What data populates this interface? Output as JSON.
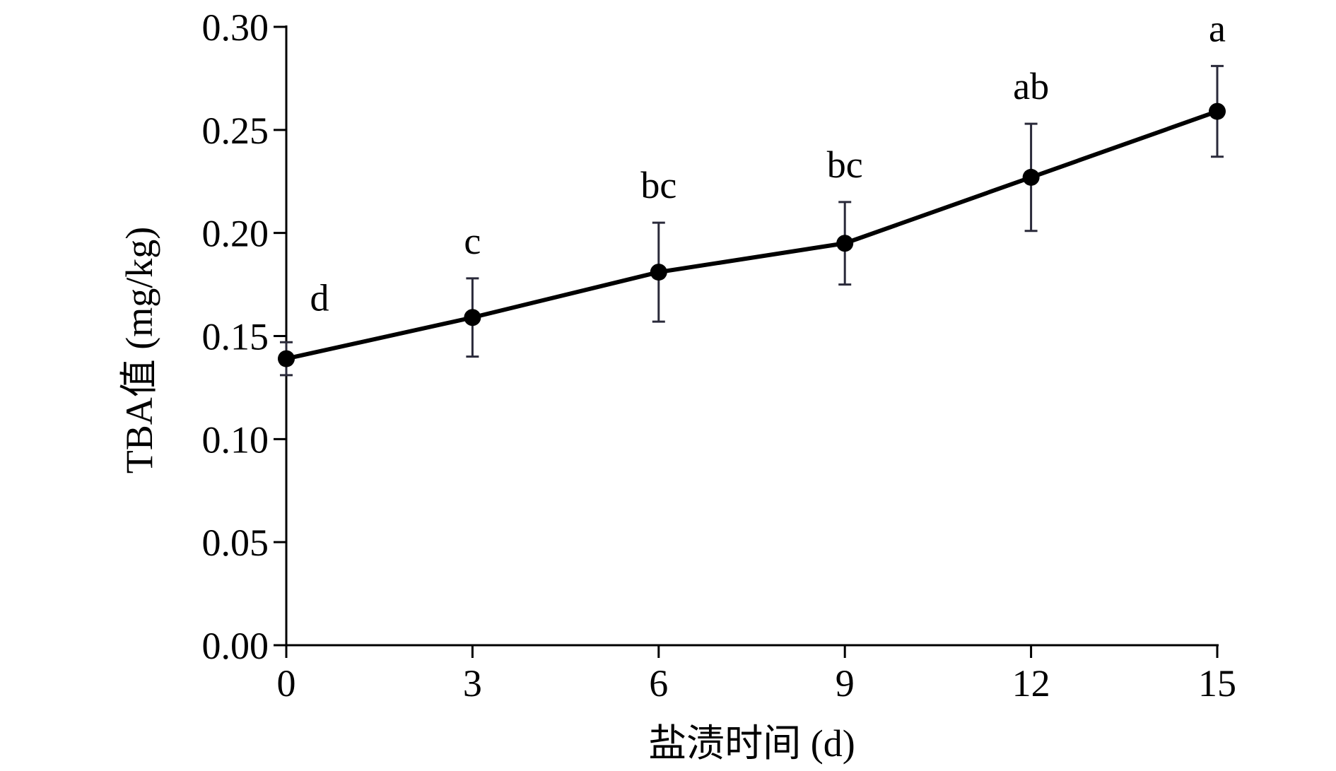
{
  "chart_data": {
    "type": "line",
    "xlabel": "盐渍时间 (d)",
    "ylabel": "TBA值 (mg/kg)",
    "x": [
      0,
      3,
      6,
      9,
      12,
      15
    ],
    "xticks": [
      0,
      3,
      6,
      9,
      12,
      15
    ],
    "xtick_labels": [
      "0",
      "3",
      "6",
      "9",
      "12",
      "15"
    ],
    "xlim": [
      0,
      15
    ],
    "yticks": [
      0.0,
      0.05,
      0.1,
      0.15,
      0.2,
      0.25,
      0.3
    ],
    "ytick_labels": [
      "0.00",
      "0.05",
      "0.10",
      "0.15",
      "0.20",
      "0.25",
      "0.30"
    ],
    "ylim": [
      0,
      0.3
    ],
    "grid": false,
    "series": [
      {
        "values": [
          0.139,
          0.159,
          0.181,
          0.195,
          0.227,
          0.259
        ],
        "error": [
          0.008,
          0.019,
          0.024,
          0.02,
          0.026,
          0.022
        ],
        "significance_labels": [
          "d",
          "c",
          "bc",
          "bc",
          "ab",
          "a"
        ]
      }
    ],
    "colors": {
      "line": "#000000",
      "marker": "#000000",
      "error_bar": "#2a2a3a",
      "axis": "#000000"
    }
  }
}
